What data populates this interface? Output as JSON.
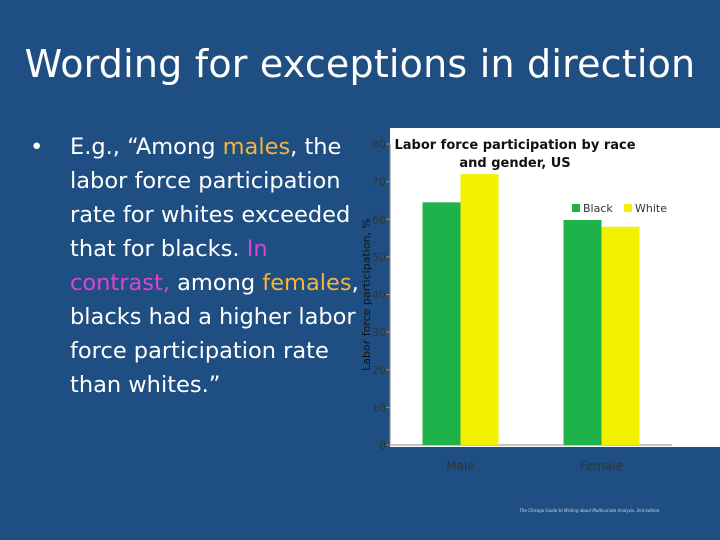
{
  "slide": {
    "title": "Wording for exceptions in direction",
    "bullet_symbol": "•",
    "bullet_segments": [
      {
        "text": "E.g., “Among ",
        "style": "normal"
      },
      {
        "text": "males",
        "style": "orange"
      },
      {
        "text": ", the labor force participation rate for whites exceeded that for blacks. ",
        "style": "normal"
      },
      {
        "text": "In contrast,",
        "style": "magenta"
      },
      {
        "text": " among ",
        "style": "normal"
      },
      {
        "text": "females",
        "style": "orange"
      },
      {
        "text": ", blacks had a higher labor force participation rate than whites.”",
        "style": "normal"
      }
    ],
    "footnote": "The Chicago Guide to Writing about Multivariate Analysis, 2nd edition."
  },
  "colors": {
    "background": "#1f4f82",
    "chart_bg": "#ffffff",
    "black_series": "#1fb14a",
    "white_series": "#f2f200",
    "highlight_orange": "#f5b43c",
    "highlight_magenta": "#e040d6"
  },
  "chart_data": {
    "type": "bar",
    "title": "Labor force participation by race and gender, US",
    "ylabel": "Labor force participation, %",
    "xlabel": "",
    "categories": [
      "Male",
      "Female"
    ],
    "series": [
      {
        "name": "Black",
        "values": [
          64.5,
          59.8
        ]
      },
      {
        "name": "White",
        "values": [
          72,
          58
        ]
      }
    ],
    "ylim": [
      0,
      80
    ],
    "yticks": [
      0,
      10,
      20,
      30,
      40,
      50,
      60,
      70,
      80
    ],
    "legend": "top-right",
    "grid": false
  }
}
